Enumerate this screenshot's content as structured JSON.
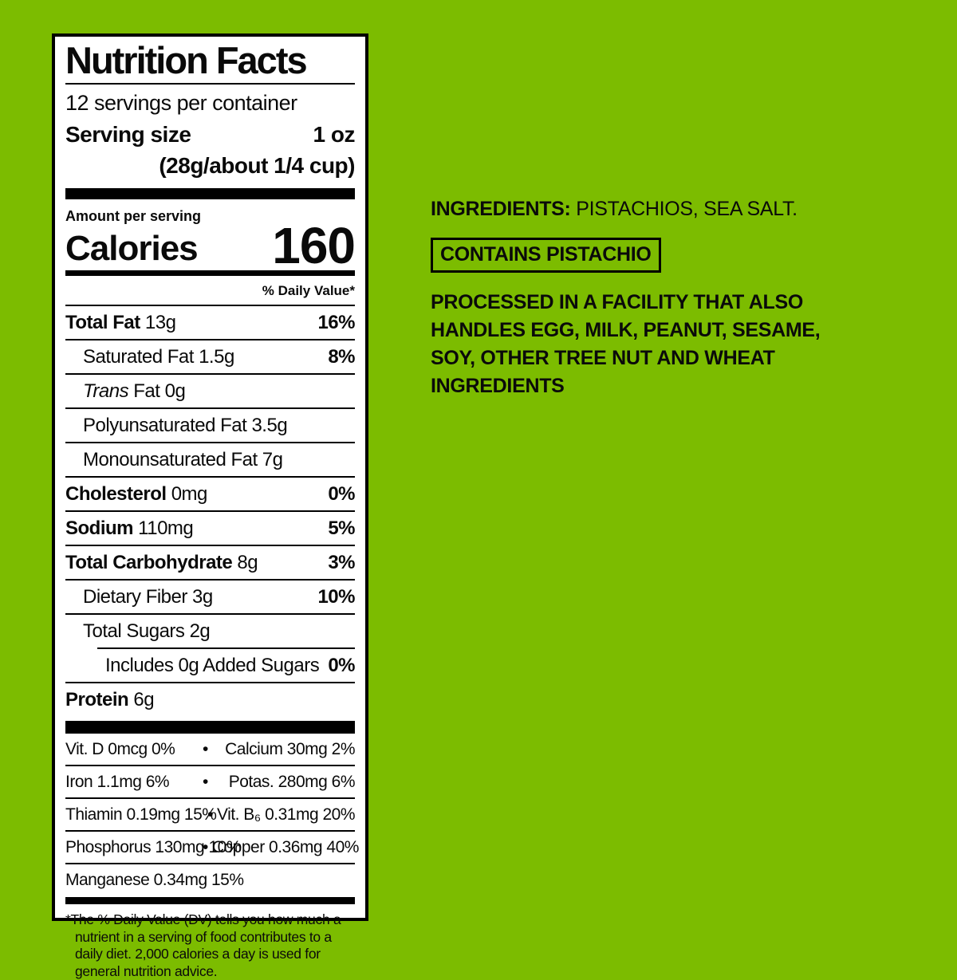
{
  "colors": {
    "background": "#7cbc00",
    "label_background": "#ffffff",
    "text": "#000000"
  },
  "label": {
    "title": "Nutrition Facts",
    "servings_per_container": "12 servings per container",
    "serving_size_label": "Serving size",
    "serving_size_value": "1 oz",
    "serving_size_detail": "(28g/about 1/4 cup)",
    "amount_per_serving": "Amount per serving",
    "calories_label": "Calories",
    "calories_value": "160",
    "daily_value_header": "% Daily Value*",
    "nutrients": [
      {
        "bold": "Total Fat",
        "rest": " 13g",
        "dv": "16%"
      },
      {
        "rest": "Saturated Fat 1.5g",
        "dv": "8%"
      },
      {
        "italic": "Trans",
        "rest": " Fat 0g"
      },
      {
        "rest": "Polyunsaturated Fat 3.5g"
      },
      {
        "rest": "Monounsaturated Fat 7g"
      },
      {
        "bold": "Cholesterol",
        "rest": " 0mg",
        "dv": "0%"
      },
      {
        "bold": "Sodium",
        "rest": " 110mg",
        "dv": "5%"
      },
      {
        "bold": "Total Carbohydrate",
        "rest": " 8g",
        "dv": "3%"
      },
      {
        "rest": "Dietary Fiber 3g",
        "dv": "10%"
      },
      {
        "rest": "Total Sugars 2g"
      },
      {
        "rest": "Includes 0g Added Sugars",
        "dv": "0%"
      },
      {
        "bold": "Protein",
        "rest": " 6g"
      }
    ],
    "vitamins": [
      {
        "left": "Vit. D 0mcg 0%",
        "bullet": "•",
        "right": "Calcium 30mg 2%"
      },
      {
        "left": "Iron 1.1mg 6%",
        "bullet": "•",
        "right": "Potas. 280mg 6%"
      },
      {
        "left": "Thiamin 0.19mg 15%",
        "bullet": "•",
        "right": "Vit. B₆ 0.31mg 20%"
      },
      {
        "left": "Phosphorus 130mg 10%",
        "bullet": "•",
        "right": "Copper 0.36mg 40%"
      },
      {
        "left": "Manganese 0.34mg 15%",
        "bullet": "",
        "right": ""
      }
    ],
    "footnote": "*The % Daily Value (DV) tells you how much a nutrient in a serving of food contributes to a daily diet. 2,000 calories a day is used for general nutrition advice."
  },
  "ingredients_panel": {
    "ingredients_label": "INGREDIENTS:",
    "ingredients_value": " PISTACHIOS, SEA SALT.",
    "contains_badge": "CONTAINS PISTACHIO",
    "allergen_statement": "PROCESSED IN A FACILITY THAT ALSO HANDLES EGG, MILK, PEANUT, SESAME, SOY, OTHER TREE NUT AND WHEAT INGREDIENTS"
  }
}
